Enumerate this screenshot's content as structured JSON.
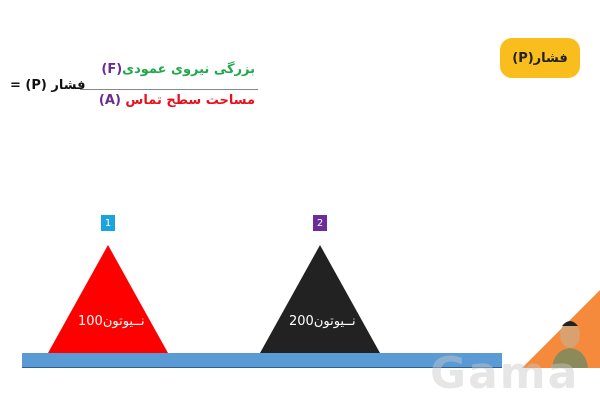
{
  "title_button": {
    "label": "فشار(P)",
    "color": "#f9be1e"
  },
  "formula": {
    "lhs": "فشار (P) =",
    "numerator_text": "بزرگی نیروی عمودی",
    "numerator_var": "(F)",
    "denominator_text": "مساحت سطح تماس ",
    "denominator_var": "(A)"
  },
  "objects": [
    {
      "badge": "1",
      "badge_color": "#1aa3dd",
      "color": "#ff0000",
      "label": "نــیوتون100"
    },
    {
      "badge": "2",
      "badge_color": "#6a2d9a",
      "color": "#222222",
      "label": "نــیوتون200"
    }
  ],
  "surface_color": "#5b9bd5",
  "watermark": "Gama"
}
